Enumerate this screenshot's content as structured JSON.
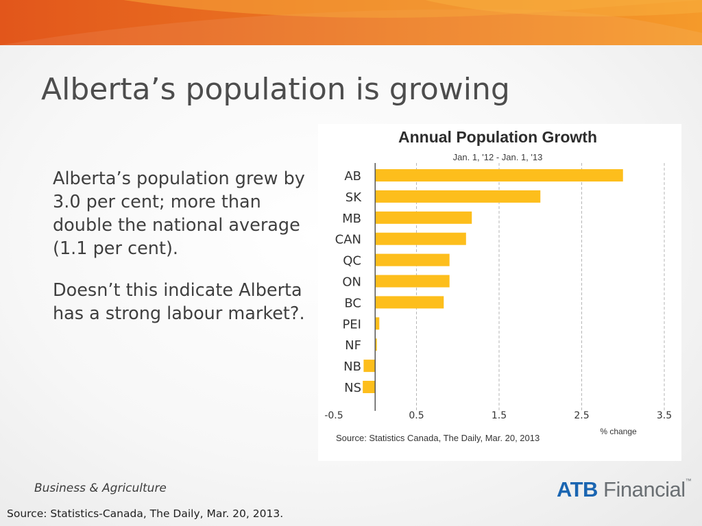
{
  "slide": {
    "title": "Alberta’s population is growing",
    "bullets": [
      "Alberta’s population grew by 3.0 per cent; more than double the national average (1.1 per cent).",
      "Doesn’t this indicate Alberta has a strong labour market?."
    ],
    "footer_left": "Business & Agriculture",
    "source": "Source: Statistics-Canada, The Daily, Mar. 20, 2013.",
    "logo": {
      "atb": "ATB",
      "financial": "Financial",
      "tm": "™"
    }
  },
  "colors": {
    "bar": "#fdbe1c",
    "banner_dark": "#e2561b",
    "banner_light": "#f59a2a",
    "title": "#4d4d4d",
    "logo_blue": "#1a65b1"
  },
  "chart_data": {
    "type": "bar",
    "orientation": "horizontal",
    "title": "Annual Population Growth",
    "subtitle": "Jan. 1, '12 - Jan. 1, '13",
    "categories": [
      "AB",
      "SK",
      "MB",
      "CAN",
      "QC",
      "ON",
      "BC",
      "PEI",
      "NF",
      "NB",
      "NS"
    ],
    "values": [
      3.0,
      2.0,
      1.17,
      1.1,
      0.9,
      0.9,
      0.83,
      0.05,
      0.02,
      -0.14,
      -0.15
    ],
    "xlabel": "% change",
    "xlim": [
      -0.5,
      3.5
    ],
    "xticks": [
      -0.5,
      0.5,
      1.5,
      2.5,
      3.5
    ],
    "xtick_labels": [
      "-0.5",
      "0.5",
      "1.5",
      "2.5",
      "3.5"
    ],
    "grid": "vertical dashed",
    "source": "Source: Statistics Canada, The Daily, Mar. 20, 2013"
  }
}
